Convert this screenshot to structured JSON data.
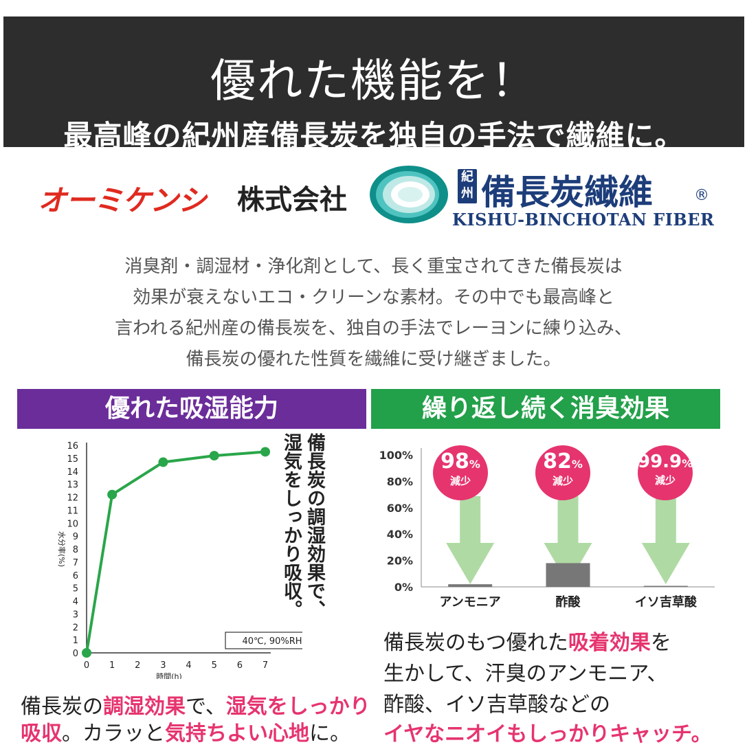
{
  "banner": {
    "title": "優れた機能を！",
    "subtitle": "最高峰の紀州産備長炭を独自の手法で繊維に。"
  },
  "brand": {
    "maker": "オーミケンシ",
    "company": "株式会社",
    "kishu_mark": "紀州",
    "fiber_jp": "備長炭繊維",
    "reg": "®",
    "fiber_en": "KISHU-BINCHOTAN FIBER"
  },
  "intro": [
    "消臭剤・調湿材・浄化剤として、長く重宝されてきた備長炭は",
    "効果が衰えないエコ・クリーンな素材。その中でも最高峰と",
    "言われる紀州産の備長炭を、独自の手法でレーヨンに練り込み、",
    "備長炭の優れた性質を繊維に受け継ぎました。"
  ],
  "colors": {
    "purple": "#6b2d9a",
    "green": "#23a04a",
    "pink": "#e6346e",
    "line": "#2aa64a"
  },
  "left_panel": {
    "heading": "優れた吸湿能力",
    "vertical_note": [
      "備長炭の調湿効果で、",
      "湿気をしっかり吸収。"
    ],
    "caption": {
      "line1": [
        "備長炭の",
        "調湿効果",
        "で、",
        "湿気をしっかり"
      ],
      "line2": [
        "吸収",
        "。カラッと",
        "気持ちよい心地",
        "に。"
      ]
    }
  },
  "right_panel": {
    "heading": "繰り返し続く消臭効果",
    "reduction_unit": "減少",
    "badges": [
      {
        "num": "98",
        "pct": "%"
      },
      {
        "num": "82",
        "pct": "%"
      },
      {
        "num": "99.9",
        "pct": "%"
      }
    ],
    "caption": {
      "line1": [
        "備長炭のもつ優れた",
        "吸着効果",
        "を"
      ],
      "line2": "生かして、汗臭のアンモニア、",
      "line3": "酢酸、イソ吉草酸などの",
      "line4": "イヤなニオイもしっかりキャッチ。"
    }
  },
  "chart_data": [
    {
      "type": "line",
      "x": [
        0,
        1,
        3,
        5,
        7
      ],
      "y": [
        0,
        12.2,
        14.7,
        15.2,
        15.5
      ],
      "xticks": [
        "0",
        "1",
        "2",
        "3",
        "4",
        "5",
        "6",
        "7"
      ],
      "yticks": [
        "0",
        "1",
        "2",
        "3",
        "4",
        "5",
        "6",
        "7",
        "8",
        "9",
        "10",
        "11",
        "12",
        "13",
        "14",
        "15",
        "16"
      ],
      "xlabel": "時間(h)",
      "ylabel": "水分率(%)",
      "xlim": [
        0,
        7
      ],
      "ylim": [
        0,
        16
      ],
      "annotation": "40℃, 90%RH",
      "grid": false
    },
    {
      "type": "bar",
      "categories": [
        "アンモニア",
        "酢酸",
        "イソ吉草酸"
      ],
      "values": [
        2,
        18,
        0.1
      ],
      "reductions": [
        "98%",
        "82%",
        "99.9%"
      ],
      "yticks": [
        "0%",
        "20%",
        "40%",
        "60%",
        "80%",
        "100%"
      ],
      "ylim": [
        0,
        100
      ],
      "grid": false
    }
  ]
}
